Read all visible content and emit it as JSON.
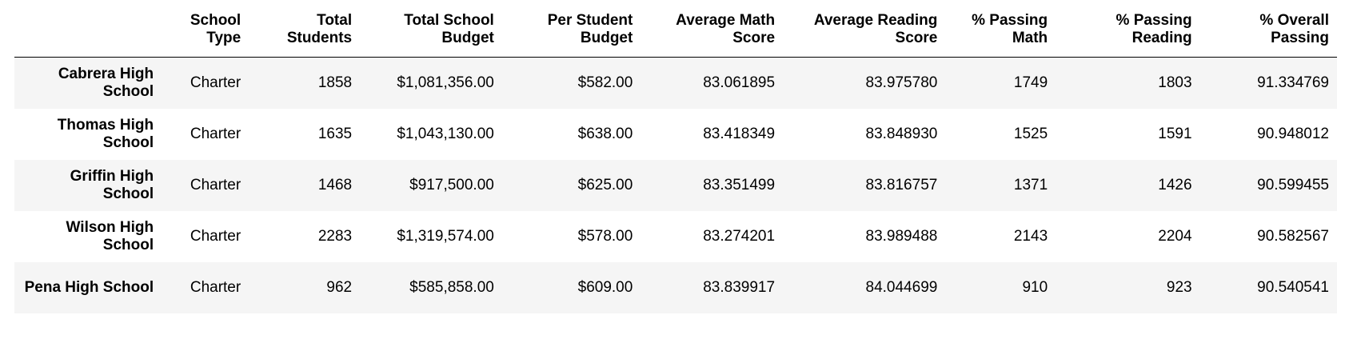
{
  "table": {
    "columns": [
      "",
      "School Type",
      "Total Students",
      "Total School Budget",
      "Per Student Budget",
      "Average Math Score",
      "Average Reading Score",
      "% Passing Math",
      "% Passing Reading",
      "% Overall Passing"
    ],
    "rows": [
      {
        "index": "Cabrera High School",
        "cells": [
          "Charter",
          "1858",
          "$1,081,356.00",
          "$582.00",
          "83.061895",
          "83.975780",
          "1749",
          "1803",
          "91.334769"
        ]
      },
      {
        "index": "Thomas High School",
        "cells": [
          "Charter",
          "1635",
          "$1,043,130.00",
          "$638.00",
          "83.418349",
          "83.848930",
          "1525",
          "1591",
          "90.948012"
        ]
      },
      {
        "index": "Griffin High School",
        "cells": [
          "Charter",
          "1468",
          "$917,500.00",
          "$625.00",
          "83.351499",
          "83.816757",
          "1371",
          "1426",
          "90.599455"
        ]
      },
      {
        "index": "Wilson High School",
        "cells": [
          "Charter",
          "2283",
          "$1,319,574.00",
          "$578.00",
          "83.274201",
          "83.989488",
          "2143",
          "2204",
          "90.582567"
        ]
      },
      {
        "index": "Pena High School",
        "cells": [
          "Charter",
          "962",
          "$585,858.00",
          "$609.00",
          "83.839917",
          "84.044699",
          "910",
          "923",
          "90.540541"
        ]
      }
    ]
  }
}
